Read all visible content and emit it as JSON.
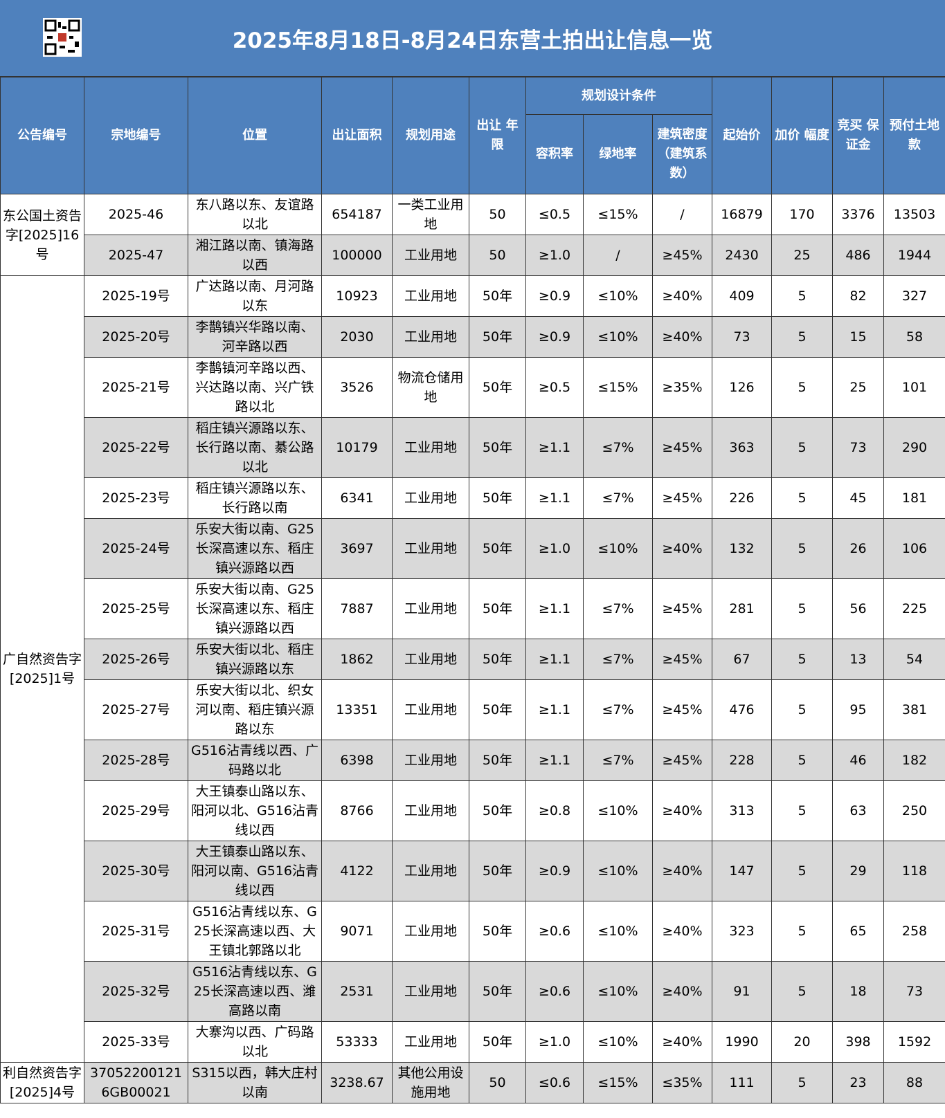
{
  "header": {
    "title": "2025年8月18日-8月24日东营土拍出让信息一览"
  },
  "table": {
    "columns": [
      "公告编号",
      "宗地编号",
      "位置",
      "出让面积",
      "规划用途",
      "出让 年限",
      "容积率",
      "绿地率",
      "建筑密度（建筑系数）",
      "起始价",
      "加价 幅度",
      "竞买 保证金",
      "预付土地款"
    ],
    "planning_group": "规划设计条件",
    "groups": [
      {
        "notice": "东公国土资告字[2025]16号",
        "rows": [
          [
            "2025-46",
            "东八路以东、友谊路以北",
            "654187",
            "一类工业用地",
            "50",
            "≤0.5",
            "≤15%",
            "/",
            "16879",
            "170",
            "3376",
            "13503"
          ],
          [
            "2025-47",
            "湘江路以南、镇海路以西",
            "100000",
            "工业用地",
            "50",
            "≥1.0",
            "/",
            "≥45%",
            "2430",
            "25",
            "486",
            "1944"
          ]
        ]
      },
      {
        "notice": "广自然资告字[2025]1号",
        "rows": [
          [
            "2025-19号",
            "广达路以南、月河路以东",
            "10923",
            "工业用地",
            "50年",
            "≥0.9",
            "≤10%",
            "≥40%",
            "409",
            "5",
            "82",
            "327"
          ],
          [
            "2025-20号",
            "李鹊镇兴华路以南、河辛路以西",
            "2030",
            "工业用地",
            "50年",
            "≥0.9",
            "≤10%",
            "≥40%",
            "73",
            "5",
            "15",
            "58"
          ],
          [
            "2025-21号",
            "李鹊镇河辛路以西、兴达路以南、兴广铁路以北",
            "3526",
            "物流仓储用地",
            "50年",
            "≥0.5",
            "≤15%",
            "≥35%",
            "126",
            "5",
            "25",
            "101"
          ],
          [
            "2025-22号",
            "稻庄镇兴源路以东、长行路以南、綦公路以北",
            "10179",
            "工业用地",
            "50年",
            "≥1.1",
            "≤7%",
            "≥45%",
            "363",
            "5",
            "73",
            "290"
          ],
          [
            "2025-23号",
            "稻庄镇兴源路以东、长行路以南",
            "6341",
            "工业用地",
            "50年",
            "≥1.1",
            "≤7%",
            "≥45%",
            "226",
            "5",
            "45",
            "181"
          ],
          [
            "2025-24号",
            "乐安大街以南、G25长深高速以东、稻庄镇兴源路以西",
            "3697",
            "工业用地",
            "50年",
            "≥1.0",
            "≤10%",
            "≥40%",
            "132",
            "5",
            "26",
            "106"
          ],
          [
            "2025-25号",
            "乐安大街以南、G25长深高速以东、稻庄镇兴源路以西",
            "7887",
            "工业用地",
            "50年",
            "≥1.1",
            "≤7%",
            "≥45%",
            "281",
            "5",
            "56",
            "225"
          ],
          [
            "2025-26号",
            "乐安大街以北、稻庄镇兴源路以东",
            "1862",
            "工业用地",
            "50年",
            "≥1.1",
            "≤7%",
            "≥45%",
            "67",
            "5",
            "13",
            "54"
          ],
          [
            "2025-27号",
            "乐安大街以北、织女河以南、稻庄镇兴源路以东",
            "13351",
            "工业用地",
            "50年",
            "≥1.1",
            "≤7%",
            "≥45%",
            "476",
            "5",
            "95",
            "381"
          ],
          [
            "2025-28号",
            "G516沾青线以西、广码路以北",
            "6398",
            "工业用地",
            "50年",
            "≥1.1",
            "≤7%",
            "≥45%",
            "228",
            "5",
            "46",
            "182"
          ],
          [
            "2025-29号",
            "大王镇泰山路以东、阳河以北、G516沾青线以西",
            "8766",
            "工业用地",
            "50年",
            "≥0.8",
            "≤10%",
            "≥40%",
            "313",
            "5",
            "63",
            "250"
          ],
          [
            "2025-30号",
            "大王镇泰山路以东、阳河以南、G516沾青线以西",
            "4122",
            "工业用地",
            "50年",
            "≥0.9",
            "≤10%",
            "≥40%",
            "147",
            "5",
            "29",
            "118"
          ],
          [
            "2025-31号",
            "G516沾青线以东、G25长深高速以西、大王镇北郭路以北",
            "9071",
            "工业用地",
            "50年",
            "≥0.6",
            "≤10%",
            "≥40%",
            "323",
            "5",
            "65",
            "258"
          ],
          [
            "2025-32号",
            "G516沾青线以东、G25长深高速以西、潍高路以南",
            "2531",
            "工业用地",
            "50年",
            "≥0.6",
            "≤10%",
            "≥40%",
            "91",
            "5",
            "18",
            "73"
          ],
          [
            "2025-33号",
            "大寨沟以西、广码路以北",
            "53333",
            "工业用地",
            "50年",
            "≥1.0",
            "≤10%",
            "≥40%",
            "1990",
            "20",
            "398",
            "1592"
          ]
        ]
      },
      {
        "notice": "利自然资告字[2025]4号",
        "rows": [
          [
            "370522001216GB00021",
            "S315以西，韩大庄村以南",
            "3238.67",
            "其他公用设施用地",
            "50",
            "≤0.6",
            "≤15%",
            "≤35%",
            "111",
            "5",
            "23",
            "88"
          ]
        ]
      }
    ]
  }
}
